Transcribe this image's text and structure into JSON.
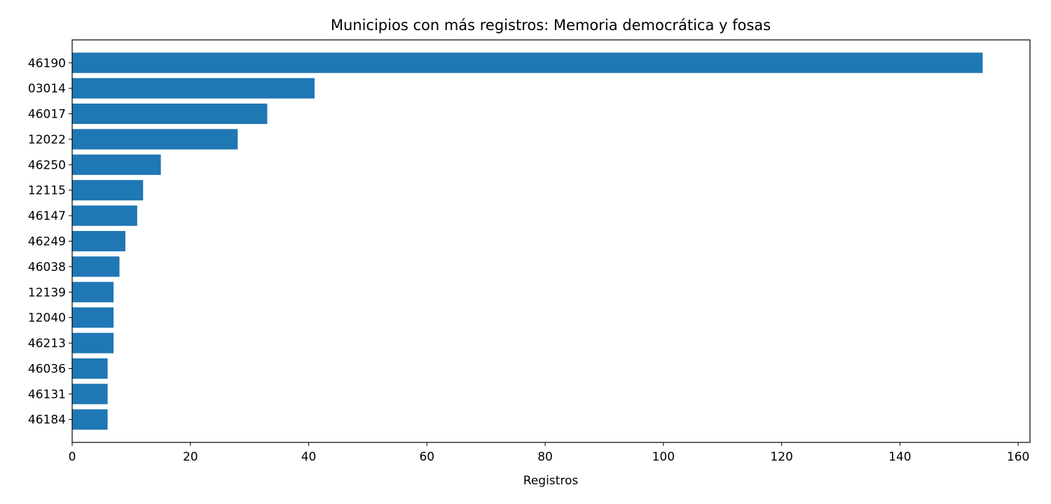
{
  "chart_data": {
    "type": "bar",
    "orientation": "horizontal",
    "title": "Municipios con más registros: Memoria democrática y fosas",
    "xlabel": "Registros",
    "ylabel": "",
    "categories": [
      "46190",
      "03014",
      "46017",
      "12022",
      "46250",
      "12115",
      "46147",
      "46249",
      "46038",
      "12139",
      "12040",
      "46213",
      "46036",
      "46131",
      "46184"
    ],
    "values": [
      154,
      41,
      33,
      28,
      15,
      12,
      11,
      9,
      8,
      7,
      7,
      7,
      6,
      6,
      6
    ],
    "xlim": [
      0,
      162
    ],
    "xticks": [
      0,
      20,
      40,
      60,
      80,
      100,
      120,
      140,
      160
    ],
    "grid": false,
    "bar_color": "#1f77b4"
  }
}
